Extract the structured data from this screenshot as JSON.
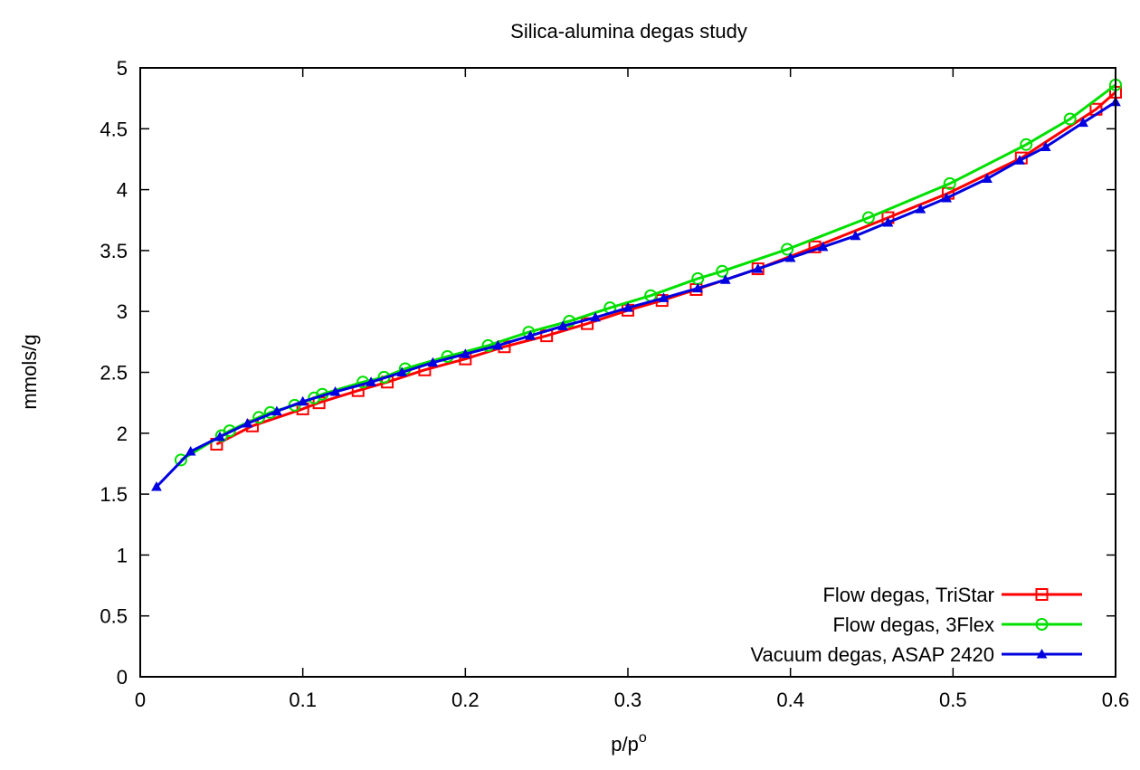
{
  "chart_data": {
    "type": "line",
    "title": "Silica-alumina degas study",
    "xlabel": "p/p",
    "xlabel_superscript": "o",
    "ylabel": "mmols/g",
    "xlim": [
      0,
      0.6
    ],
    "ylim": [
      0,
      5
    ],
    "xticks": [
      0,
      0.1,
      0.2,
      0.3,
      0.4,
      0.5,
      0.6
    ],
    "xtick_labels": [
      "0",
      "0.1",
      "0.2",
      "0.3",
      "0.4",
      "0.5",
      "0.6"
    ],
    "yticks": [
      0,
      0.5,
      1,
      1.5,
      2,
      2.5,
      3,
      3.5,
      4,
      4.5,
      5
    ],
    "ytick_labels": [
      "0",
      "0.5",
      "1",
      "1.5",
      "2",
      "2.5",
      "3",
      "3.5",
      "4",
      "4.5",
      "5"
    ],
    "grid": false,
    "legend_position": "bottom-right",
    "series": [
      {
        "name": "Flow degas, TriStar",
        "color": "#ff0000",
        "marker": "open-square",
        "points": [
          [
            0.047,
            1.91
          ],
          [
            0.069,
            2.06
          ],
          [
            0.1,
            2.2
          ],
          [
            0.11,
            2.25
          ],
          [
            0.134,
            2.35
          ],
          [
            0.152,
            2.42
          ],
          [
            0.175,
            2.52
          ],
          [
            0.2,
            2.61
          ],
          [
            0.224,
            2.71
          ],
          [
            0.25,
            2.8
          ],
          [
            0.275,
            2.9
          ],
          [
            0.3,
            3.01
          ],
          [
            0.321,
            3.09
          ],
          [
            0.342,
            3.18
          ],
          [
            0.38,
            3.35
          ],
          [
            0.415,
            3.53
          ],
          [
            0.46,
            3.77
          ],
          [
            0.497,
            3.97
          ],
          [
            0.542,
            4.26
          ],
          [
            0.588,
            4.66
          ],
          [
            0.6,
            4.8
          ]
        ]
      },
      {
        "name": "Flow degas, 3Flex",
        "color": "#00e000",
        "marker": "open-circle",
        "points": [
          [
            0.025,
            1.78
          ],
          [
            0.05,
            1.98
          ],
          [
            0.055,
            2.02
          ],
          [
            0.073,
            2.13
          ],
          [
            0.08,
            2.17
          ],
          [
            0.095,
            2.23
          ],
          [
            0.107,
            2.29
          ],
          [
            0.112,
            2.32
          ],
          [
            0.137,
            2.42
          ],
          [
            0.15,
            2.46
          ],
          [
            0.163,
            2.53
          ],
          [
            0.189,
            2.63
          ],
          [
            0.214,
            2.72
          ],
          [
            0.239,
            2.83
          ],
          [
            0.264,
            2.92
          ],
          [
            0.289,
            3.03
          ],
          [
            0.314,
            3.13
          ],
          [
            0.343,
            3.27
          ],
          [
            0.358,
            3.33
          ],
          [
            0.398,
            3.51
          ],
          [
            0.448,
            3.77
          ],
          [
            0.498,
            4.05
          ],
          [
            0.545,
            4.37
          ],
          [
            0.572,
            4.58
          ],
          [
            0.6,
            4.86
          ]
        ]
      },
      {
        "name": "Vacuum degas, ASAP 2420",
        "color": "#0000e0",
        "marker": "filled-triangle",
        "points": [
          [
            0.01,
            1.56
          ],
          [
            0.031,
            1.85
          ],
          [
            0.049,
            1.97
          ],
          [
            0.066,
            2.08
          ],
          [
            0.084,
            2.18
          ],
          [
            0.1,
            2.26
          ],
          [
            0.12,
            2.34
          ],
          [
            0.142,
            2.42
          ],
          [
            0.161,
            2.5
          ],
          [
            0.18,
            2.58
          ],
          [
            0.2,
            2.65
          ],
          [
            0.22,
            2.72
          ],
          [
            0.24,
            2.8
          ],
          [
            0.26,
            2.88
          ],
          [
            0.28,
            2.95
          ],
          [
            0.3,
            3.03
          ],
          [
            0.322,
            3.11
          ],
          [
            0.343,
            3.19
          ],
          [
            0.36,
            3.26
          ],
          [
            0.38,
            3.35
          ],
          [
            0.4,
            3.44
          ],
          [
            0.42,
            3.53
          ],
          [
            0.44,
            3.62
          ],
          [
            0.46,
            3.73
          ],
          [
            0.48,
            3.84
          ],
          [
            0.496,
            3.93
          ],
          [
            0.521,
            4.09
          ],
          [
            0.541,
            4.24
          ],
          [
            0.557,
            4.35
          ],
          [
            0.58,
            4.55
          ],
          [
            0.6,
            4.72
          ]
        ]
      }
    ]
  }
}
